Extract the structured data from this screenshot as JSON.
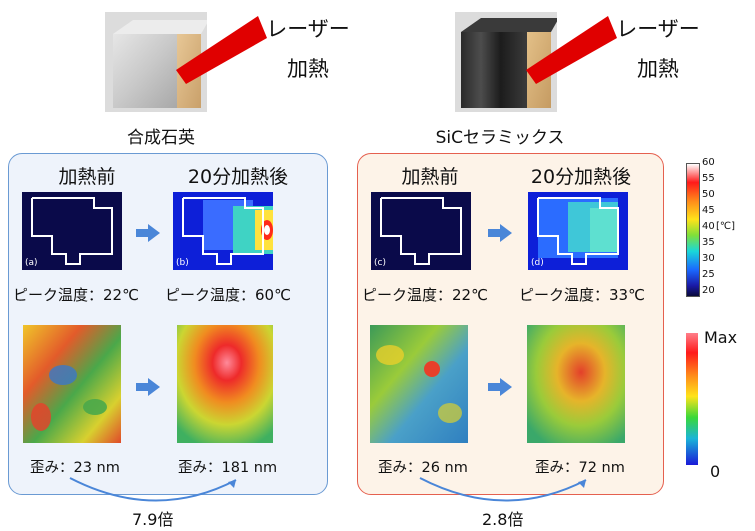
{
  "laser_label_lines": [
    "レーザー",
    "加熱"
  ],
  "materials": [
    {
      "name": "合成石英",
      "before": "加熱前",
      "after": "20分加熱後",
      "peak_before": "ピーク温度：22℃",
      "peak_after": "ピーク温度：60℃",
      "strain_before": "歪み：23 nm",
      "strain_after": "歪み：181 nm",
      "ratio": "7.9倍",
      "tag_before": "(a)",
      "tag_after": "(b)"
    },
    {
      "name": "SiCセラミックス",
      "before": "加熱前",
      "after": "20分加熱後",
      "peak_before": "ピーク温度：22℃",
      "peak_after": "ピーク温度：33℃",
      "strain_before": "歪み：26 nm",
      "strain_after": "歪み：72 nm",
      "ratio": "2.8倍",
      "tag_before": "(c)",
      "tag_after": "(d)"
    }
  ],
  "temp_scale": {
    "unit": "[℃]",
    "ticks": [
      "60",
      "55",
      "50",
      "45",
      "40",
      "35",
      "30",
      "25",
      "20"
    ]
  },
  "strain_scale": {
    "max_label": "Max",
    "min_label": "0"
  }
}
